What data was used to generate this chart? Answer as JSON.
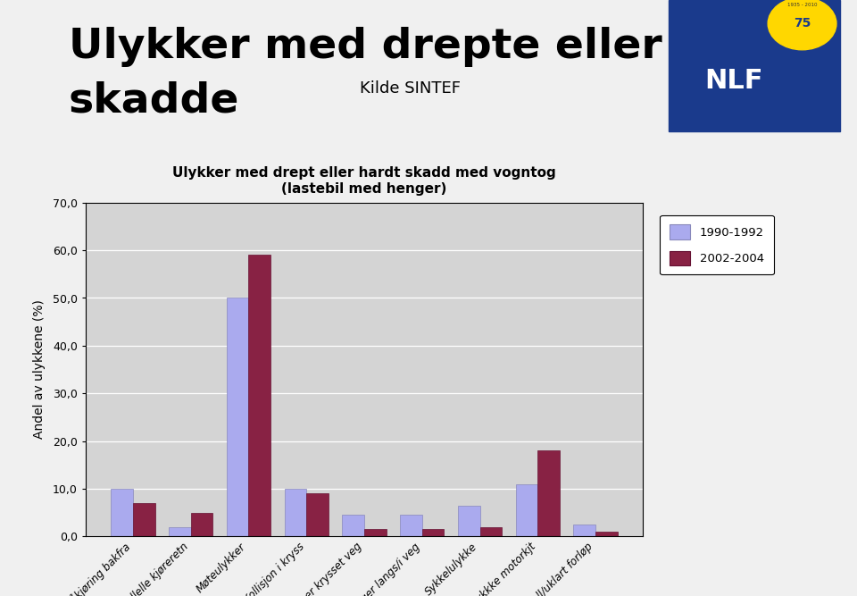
{
  "chart_title_line1": "Ulykker med drept eller hardt skadd med vogntog",
  "chart_title_line2": "(lastebil med henger)",
  "ylabel": "Andel av ulykkene (%)",
  "categories": [
    "Påkjøring bakfra",
    "Parallelle kjøreretn",
    "Møteulykker",
    "Kollisjon i kryss",
    "Fotgjenger krysset veg",
    "Fotgjenger langs/i veg",
    "Sykkelulykke",
    "Singelulykkke motorkjt",
    "Andre uhell/uklart forløp"
  ],
  "values_1990": [
    10.0,
    2.0,
    50.0,
    10.0,
    4.5,
    4.5,
    6.5,
    11.0,
    2.5
  ],
  "values_2002": [
    7.0,
    5.0,
    59.0,
    9.0,
    1.5,
    1.5,
    2.0,
    18.0,
    1.0
  ],
  "color_1990": "#aaaaee",
  "color_2002": "#882244",
  "legend_1990": "1990-1992",
  "legend_2002": "2002-2004",
  "ylim": [
    0,
    70
  ],
  "yticks": [
    0,
    10,
    20,
    30,
    40,
    50,
    60,
    70
  ],
  "ytick_labels": [
    "0,0",
    "10,0",
    "20,0",
    "30,0",
    "40,0",
    "50,0",
    "60,0",
    "70,0"
  ],
  "background_color": "#d4d4d4",
  "fig_background": "#f0f0f0"
}
